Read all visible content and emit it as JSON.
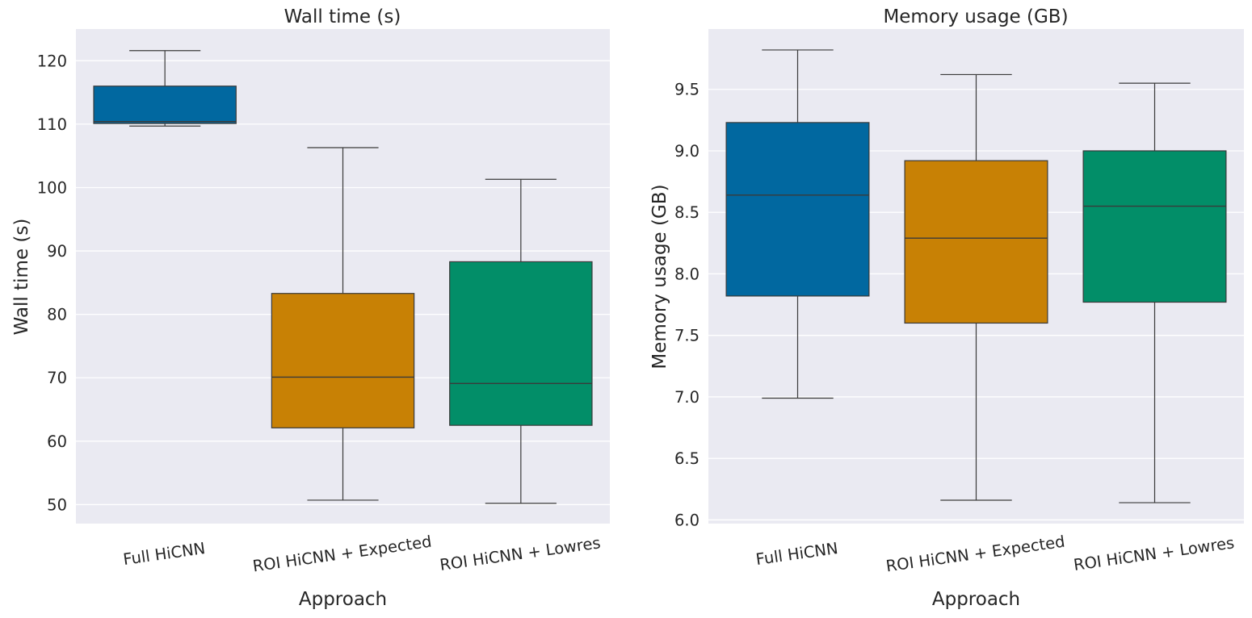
{
  "chart_data": [
    {
      "type": "box",
      "title": "Wall time (s)",
      "xlabel": "Approach",
      "ylabel": "Wall time (s)",
      "ylim": [
        47,
        125
      ],
      "yticks": [
        50,
        60,
        70,
        80,
        90,
        100,
        110,
        120
      ],
      "grid": true,
      "categories": [
        "Full HiCNN",
        "ROI HiCNN + Expected",
        "ROI HiCNN + Lowres"
      ],
      "colors": [
        "#0173b2",
        "#de8f05",
        "#029e73"
      ],
      "boxes": [
        {
          "min": 109.7,
          "q1": 110.1,
          "median": 110.4,
          "q3": 116.0,
          "max": 121.6
        },
        {
          "min": 50.7,
          "q1": 62.1,
          "median": 70.1,
          "q3": 83.3,
          "max": 106.3
        },
        {
          "min": 50.2,
          "q1": 62.5,
          "median": 69.1,
          "q3": 88.3,
          "max": 101.3
        }
      ]
    },
    {
      "type": "box",
      "title": "Memory usage (GB)",
      "xlabel": "Approach",
      "ylabel": "Memory usage (GB)",
      "ylim": [
        5.97,
        9.99
      ],
      "yticks": [
        6.0,
        6.5,
        7.0,
        7.5,
        8.0,
        8.5,
        9.0,
        9.5
      ],
      "grid": true,
      "categories": [
        "Full HiCNN",
        "ROI HiCNN + Expected",
        "ROI HiCNN + Lowres"
      ],
      "colors": [
        "#0173b2",
        "#de8f05",
        "#029e73"
      ],
      "boxes": [
        {
          "min": 6.99,
          "q1": 7.82,
          "median": 8.64,
          "q3": 9.23,
          "max": 9.82
        },
        {
          "min": 6.16,
          "q1": 7.6,
          "median": 8.29,
          "q3": 8.92,
          "max": 9.62
        },
        {
          "min": 6.14,
          "q1": 7.77,
          "median": 8.55,
          "q3": 9.0,
          "max": 9.55
        }
      ]
    }
  ]
}
